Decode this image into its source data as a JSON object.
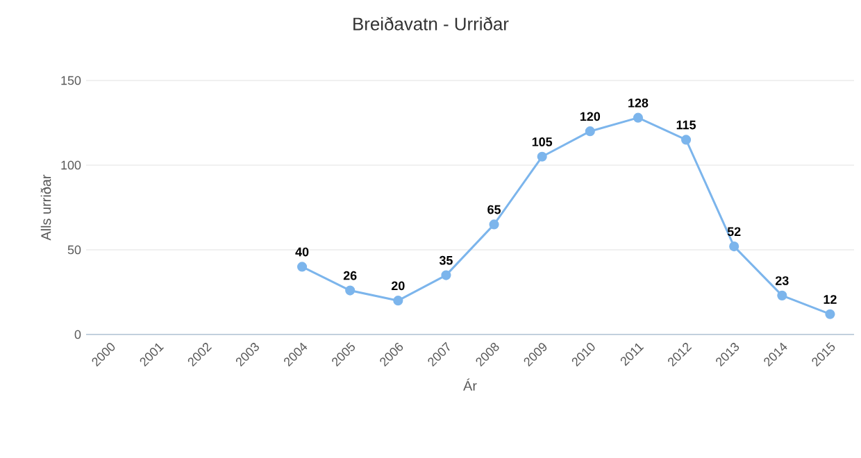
{
  "chart_data": {
    "type": "line",
    "title": "Breiðavatn - Urriðar",
    "xlabel": "Ár",
    "ylabel": "Alls urriðar",
    "categories": [
      "2000",
      "2001",
      "2002",
      "2003",
      "2004",
      "2005",
      "2006",
      "2007",
      "2008",
      "2009",
      "2010",
      "2011",
      "2012",
      "2013",
      "2014",
      "2015"
    ],
    "values": [
      null,
      null,
      null,
      null,
      40,
      26,
      20,
      35,
      65,
      105,
      120,
      128,
      115,
      52,
      23,
      12
    ],
    "color": "#7cb5ec",
    "ylim": [
      0,
      150
    ],
    "yticks": [
      0,
      50,
      100,
      150
    ],
    "grid": "y",
    "marker": "circle",
    "line_style": "solid",
    "data_labels": true
  }
}
